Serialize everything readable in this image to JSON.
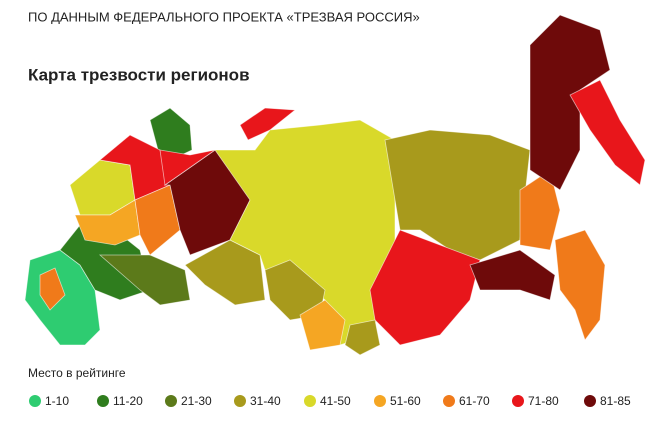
{
  "header": {
    "source": "ПО ДАННЫМ ФЕДЕРАЛЬНОГО ПРОЕКТА «ТРЕЗВАЯ РОССИЯ»",
    "title": "Карта трезвости регионов"
  },
  "legend": {
    "title": "Место в рейтинге",
    "items": [
      {
        "label": "1-10",
        "color": "#2ecc71"
      },
      {
        "label": "11-20",
        "color": "#2f7d1e"
      },
      {
        "label": "21-30",
        "color": "#5c7a1a"
      },
      {
        "label": "31-40",
        "color": "#a89a1c"
      },
      {
        "label": "41-50",
        "color": "#d9d92a"
      },
      {
        "label": "51-60",
        "color": "#f5a623"
      },
      {
        "label": "61-70",
        "color": "#f07a1a"
      },
      {
        "label": "71-80",
        "color": "#e8161b"
      },
      {
        "label": "81-85",
        "color": "#6e0a0a"
      }
    ]
  }
}
